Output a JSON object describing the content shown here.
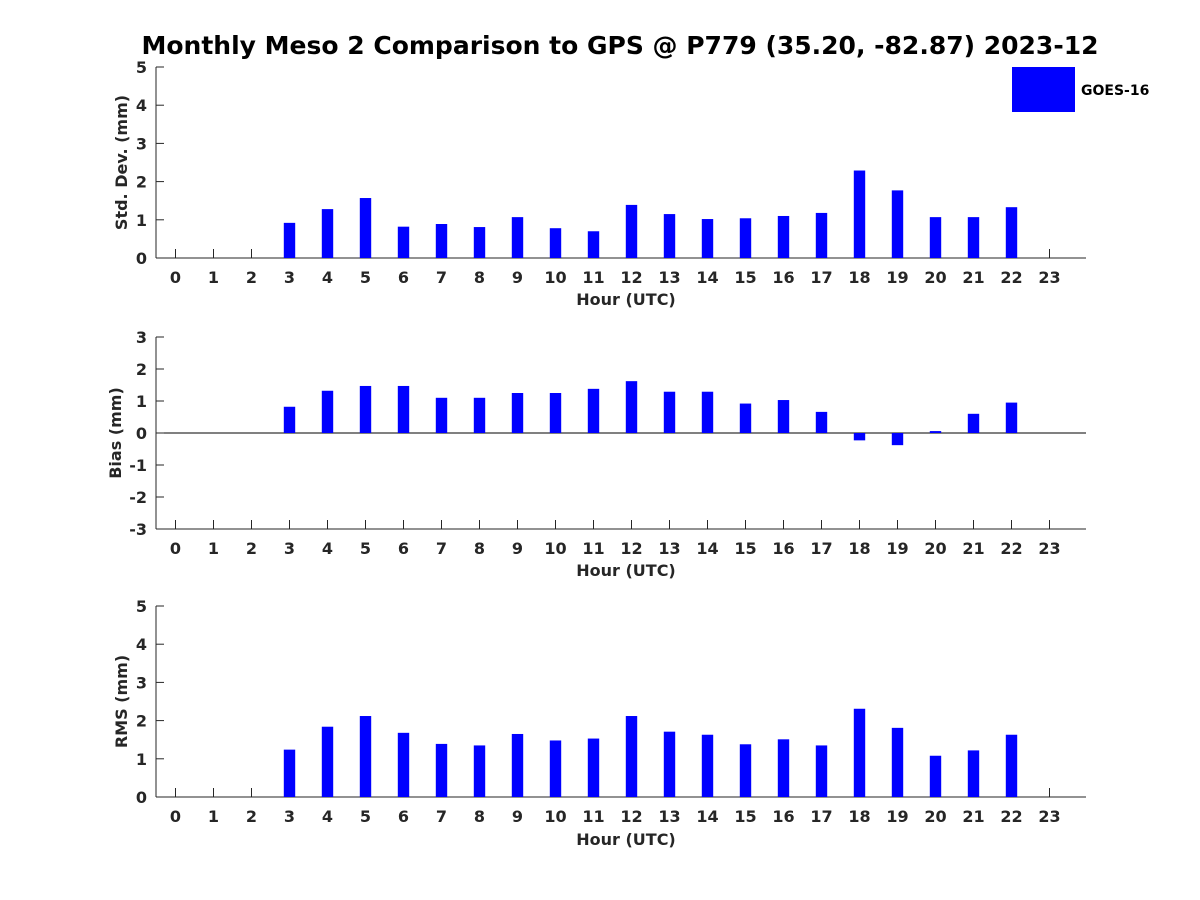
{
  "title": "Monthly Meso 2 Comparison to GPS @ P779 (35.20, -82.87) 2023-12",
  "colors": {
    "bar": "#0000ff",
    "axis": "#262626",
    "text": "#000000"
  },
  "legend": {
    "label": "GOES-16",
    "placement": "top-right"
  },
  "chart_data": [
    {
      "type": "bar",
      "x": [
        0,
        1,
        2,
        3,
        4,
        5,
        6,
        7,
        8,
        9,
        10,
        11,
        12,
        13,
        14,
        15,
        16,
        17,
        18,
        19,
        20,
        21,
        22,
        23
      ],
      "series": [
        {
          "name": "GOES-16",
          "values": [
            null,
            null,
            null,
            0.92,
            1.28,
            1.57,
            0.82,
            0.89,
            0.81,
            1.07,
            0.78,
            0.7,
            1.39,
            1.15,
            1.02,
            1.04,
            1.1,
            1.18,
            2.29,
            1.77,
            1.07,
            1.07,
            1.33,
            null
          ]
        }
      ],
      "xlabel": "Hour (UTC)",
      "ylabel": "Std. Dev. (mm)",
      "xticks": [
        "0",
        "1",
        "2",
        "3",
        "4",
        "5",
        "6",
        "7",
        "8",
        "9",
        "10",
        "11",
        "12",
        "13",
        "14",
        "15",
        "16",
        "17",
        "18",
        "19",
        "20",
        "21",
        "22",
        "23"
      ],
      "yticks": [
        "0",
        "1",
        "2",
        "3",
        "4",
        "5"
      ],
      "ylim": [
        0,
        5
      ]
    },
    {
      "type": "bar",
      "x": [
        0,
        1,
        2,
        3,
        4,
        5,
        6,
        7,
        8,
        9,
        10,
        11,
        12,
        13,
        14,
        15,
        16,
        17,
        18,
        19,
        20,
        21,
        22,
        23
      ],
      "series": [
        {
          "name": "GOES-16",
          "values": [
            null,
            null,
            null,
            0.82,
            1.32,
            1.47,
            1.47,
            1.1,
            1.1,
            1.25,
            1.25,
            1.38,
            1.62,
            1.29,
            1.29,
            0.92,
            1.03,
            0.66,
            -0.23,
            -0.38,
            0.06,
            0.6,
            0.95,
            null
          ]
        }
      ],
      "xlabel": "Hour (UTC)",
      "ylabel": "Bias (mm)",
      "xticks": [
        "0",
        "1",
        "2",
        "3",
        "4",
        "5",
        "6",
        "7",
        "8",
        "9",
        "10",
        "11",
        "12",
        "13",
        "14",
        "15",
        "16",
        "17",
        "18",
        "19",
        "20",
        "21",
        "22",
        "23"
      ],
      "yticks": [
        "-3",
        "-2",
        "-1",
        "0",
        "1",
        "2",
        "3"
      ],
      "ylim": [
        -3,
        3
      ],
      "zero_line": true
    },
    {
      "type": "bar",
      "x": [
        0,
        1,
        2,
        3,
        4,
        5,
        6,
        7,
        8,
        9,
        10,
        11,
        12,
        13,
        14,
        15,
        16,
        17,
        18,
        19,
        20,
        21,
        22,
        23
      ],
      "series": [
        {
          "name": "GOES-16",
          "values": [
            null,
            null,
            null,
            1.24,
            1.84,
            2.12,
            1.68,
            1.39,
            1.35,
            1.65,
            1.48,
            1.53,
            2.12,
            1.71,
            1.63,
            1.38,
            1.51,
            1.35,
            2.31,
            1.81,
            1.08,
            1.22,
            1.63,
            null
          ]
        }
      ],
      "xlabel": "Hour (UTC)",
      "ylabel": "RMS (mm)",
      "xticks": [
        "0",
        "1",
        "2",
        "3",
        "4",
        "5",
        "6",
        "7",
        "8",
        "9",
        "10",
        "11",
        "12",
        "13",
        "14",
        "15",
        "16",
        "17",
        "18",
        "19",
        "20",
        "21",
        "22",
        "23"
      ],
      "yticks": [
        "0",
        "1",
        "2",
        "3",
        "4",
        "5"
      ],
      "ylim": [
        0,
        5
      ]
    }
  ]
}
